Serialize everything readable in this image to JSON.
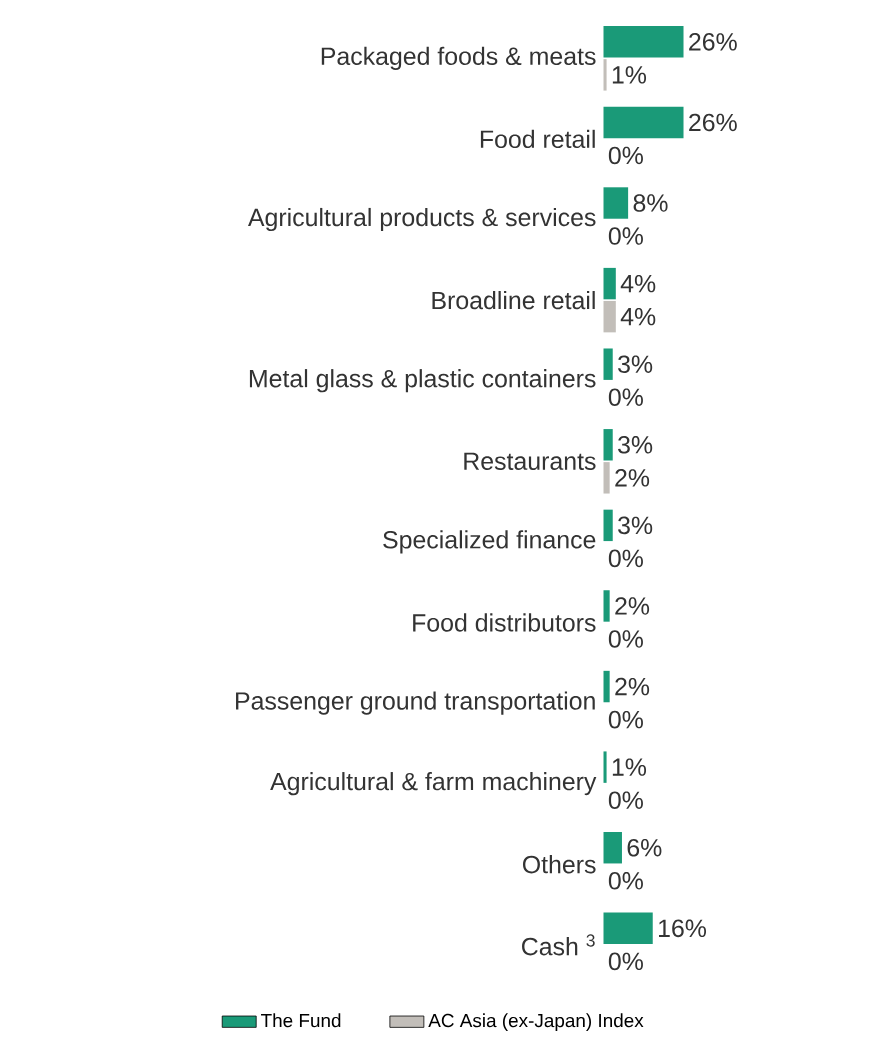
{
  "chart_data": {
    "type": "bar",
    "orientation": "horizontal",
    "categories": [
      "Packaged foods & meats",
      "Food retail",
      "Agricultural products & services",
      "Broadline retail",
      "Metal glass & plastic containers",
      "Restaurants",
      "Specialized finance",
      "Food distributors",
      "Passenger ground transportation",
      "Agricultural & farm machinery",
      "Others",
      "Cash $^{3}$"
    ],
    "series": [
      {
        "name": "The Fund",
        "color": "#1a9a78",
        "values": [
          26,
          26,
          8,
          4,
          3,
          3,
          3,
          2,
          2,
          1,
          6,
          16
        ],
        "value_labels": [
          "26%",
          "26%",
          "8%",
          "4%",
          "3%",
          "3%",
          "3%",
          "2%",
          "2%",
          "1%",
          "6%",
          "16%"
        ]
      },
      {
        "name": "AC Asia (ex-Japan) Index",
        "color": "#c2beb9",
        "values": [
          1,
          0,
          0,
          4,
          0,
          2,
          0,
          0,
          0,
          0,
          0,
          0
        ],
        "value_labels": [
          "1%",
          "0%",
          "0%",
          "4%",
          "0%",
          "2%",
          "0%",
          "0%",
          "0%",
          "0%",
          "0%",
          "0%"
        ]
      }
    ],
    "tick_labels": "y",
    "legend": "bottom"
  }
}
